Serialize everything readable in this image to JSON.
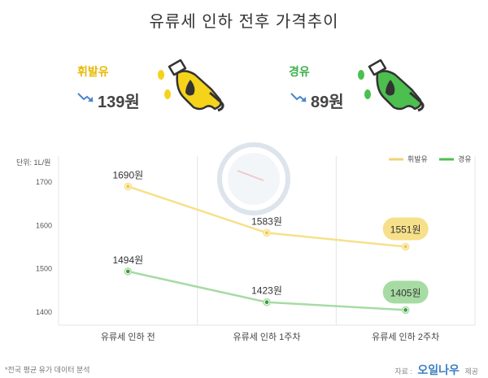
{
  "title": "유류세 인하 전후 가격추이",
  "fuels": [
    {
      "name": "휘발유",
      "drop": "139원",
      "color": "#e8b800",
      "pump_color": "#f5d31b"
    },
    {
      "name": "경유",
      "drop": "89원",
      "color": "#3cb04a",
      "pump_color": "#4cbf4f"
    }
  ],
  "unit_label": "단위: 1L/원",
  "footnote": "*전국 평균 유가 데이터 분석",
  "source": {
    "prefix": "자료 :",
    "brand": "오일나우",
    "suffix": "제공"
  },
  "chart_data": {
    "type": "line",
    "categories": [
      "유류세 인하 전",
      "유류세 인하 1주차",
      "유류세 인하 2주차"
    ],
    "series": [
      {
        "name": "휘발유",
        "values": [
          1690,
          1583,
          1551
        ],
        "labels": [
          "1690원",
          "1583원",
          "1551원"
        ],
        "color": "#f7e08a",
        "point": "#f2c94c"
      },
      {
        "name": "경유",
        "values": [
          1494,
          1423,
          1405
        ],
        "labels": [
          "1494원",
          "1423원",
          "1405원"
        ],
        "color": "#a7dba4",
        "point": "#3a9a3c"
      }
    ],
    "yticks": [
      1400,
      1500,
      1600,
      1700
    ],
    "ylim": [
      1370,
      1760
    ],
    "legend_position": "top-right"
  }
}
